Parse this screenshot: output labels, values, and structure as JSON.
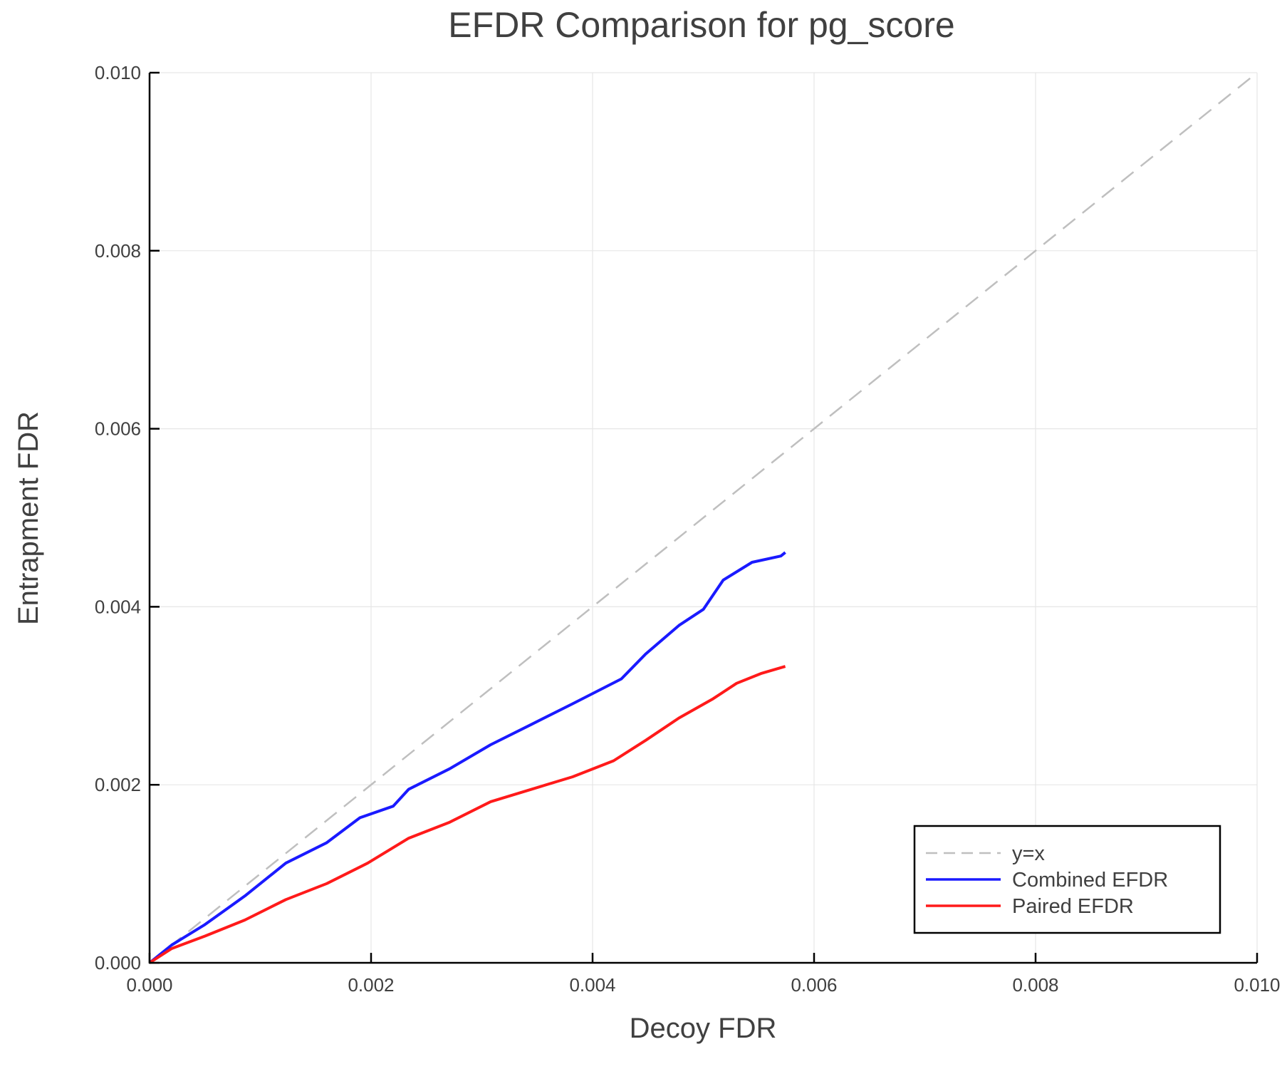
{
  "chart_data": {
    "type": "line",
    "title": "EFDR Comparison for pg_score",
    "xlabel": "Decoy FDR",
    "ylabel": "Entrapment FDR",
    "xlim": [
      0,
      0.01
    ],
    "ylim": [
      0,
      0.01
    ],
    "xticks": [
      "0.000",
      "0.002",
      "0.004",
      "0.006",
      "0.008",
      "0.010"
    ],
    "yticks": [
      "0.000",
      "0.002",
      "0.004",
      "0.006",
      "0.008",
      "0.010"
    ],
    "grid": true,
    "legend_position": "bottom-right",
    "series": [
      {
        "name": "y=x",
        "color": "#bfbfbf",
        "dash": true,
        "x": [
          0,
          0.01
        ],
        "y": [
          0,
          0.01
        ]
      },
      {
        "name": "Combined EFDR",
        "color": "#1a1aff",
        "x": [
          0,
          0.0002,
          0.0005,
          0.00086,
          0.00123,
          0.0016,
          0.0019,
          0.0022,
          0.00234,
          0.00271,
          0.00308,
          0.00345,
          0.00382,
          0.00426,
          0.00448,
          0.00478,
          0.005,
          0.00518,
          0.00544,
          0.0057,
          0.00574
        ],
        "y": [
          0,
          0.0002,
          0.00043,
          0.00075,
          0.00112,
          0.00135,
          0.00163,
          0.00176,
          0.00195,
          0.00218,
          0.00245,
          0.00268,
          0.00291,
          0.00319,
          0.00347,
          0.00379,
          0.00397,
          0.0043,
          0.0045,
          0.00457,
          0.00461
        ]
      },
      {
        "name": "Paired EFDR",
        "color": "#ff1a1a",
        "x": [
          0,
          0.0002,
          0.0005,
          0.00086,
          0.00123,
          0.0016,
          0.00197,
          0.00234,
          0.00271,
          0.00308,
          0.00345,
          0.00382,
          0.00419,
          0.00448,
          0.00478,
          0.00508,
          0.0053,
          0.00552,
          0.00574
        ],
        "y": [
          0,
          0.00016,
          0.0003,
          0.00048,
          0.00071,
          0.00089,
          0.00112,
          0.0014,
          0.00158,
          0.00181,
          0.00195,
          0.00209,
          0.00227,
          0.0025,
          0.00275,
          0.00296,
          0.00314,
          0.00325,
          0.00333
        ]
      }
    ]
  }
}
